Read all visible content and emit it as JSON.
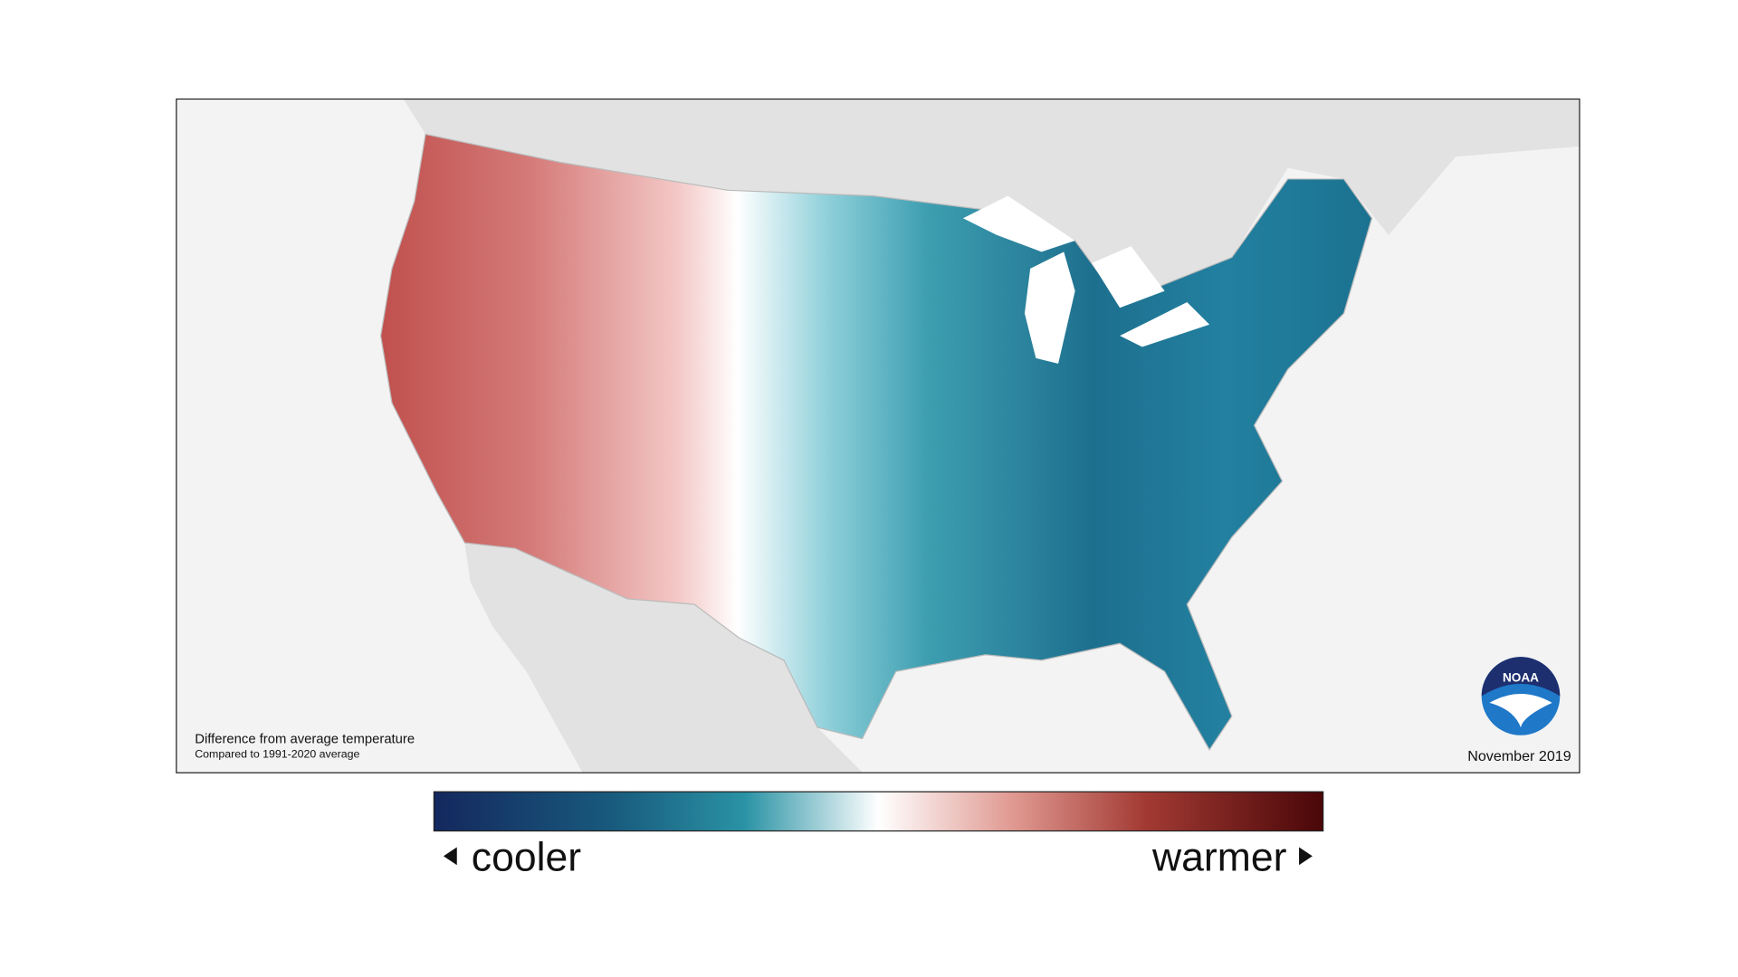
{
  "map": {
    "caption": "Difference from average temperature",
    "subcaption": "Compared to 1991-2020 average",
    "date": "November 2019",
    "logo": "NOAA"
  },
  "legend": {
    "low_label": "cooler",
    "high_label": "warmer"
  }
}
